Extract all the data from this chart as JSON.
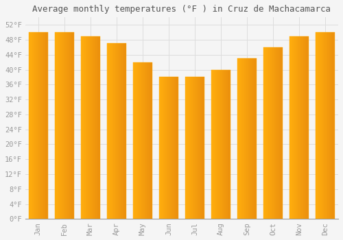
{
  "title": "Average monthly temperatures (°F ) in Cruz de Machacamarca",
  "months": [
    "Jan",
    "Feb",
    "Mar",
    "Apr",
    "May",
    "Jun",
    "Jul",
    "Aug",
    "Sep",
    "Oct",
    "Nov",
    "Dec"
  ],
  "values": [
    50,
    50,
    49,
    47,
    42,
    38,
    38,
    40,
    43,
    46,
    49,
    50
  ],
  "bar_color_main": "#FFAA00",
  "bar_color_light": "#FFCC55",
  "background_color": "#F5F5F5",
  "grid_color": "#DDDDDD",
  "ytick_values": [
    0,
    4,
    8,
    12,
    16,
    20,
    24,
    28,
    32,
    36,
    40,
    44,
    48,
    52
  ],
  "ytick_labels": [
    "0°F",
    "4°F",
    "8°F",
    "12°F",
    "16°F",
    "20°F",
    "24°F",
    "28°F",
    "32°F",
    "36°F",
    "40°F",
    "44°F",
    "48°F",
    "52°F"
  ],
  "ylim": [
    0,
    54
  ],
  "title_fontsize": 9,
  "tick_fontsize": 7.5,
  "font_color": "#999999",
  "title_color": "#555555"
}
